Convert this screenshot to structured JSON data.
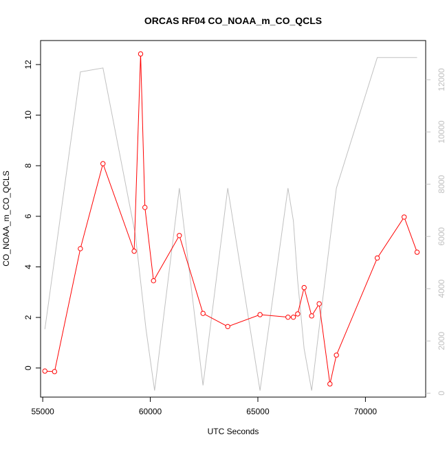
{
  "chart_data": {
    "type": "line",
    "title": "ORCAS RF04 CO_NOAA_m_CO_QCLS",
    "xlabel": "UTC Seconds",
    "ylabel": "CO_NOAA_m_CO_QCLS",
    "xlim": [
      54900,
      72800
    ],
    "ylim": [
      -1.15,
      12.95
    ],
    "y2lim": [
      -150,
      13500
    ],
    "x_ticks": [
      {
        "value": 55000,
        "label": "55000"
      },
      {
        "value": 60000,
        "label": "60000"
      },
      {
        "value": 65000,
        "label": "65000"
      },
      {
        "value": 70000,
        "label": "70000"
      }
    ],
    "y_ticks": [
      {
        "value": 0,
        "label": "0"
      },
      {
        "value": 2,
        "label": "2"
      },
      {
        "value": 4,
        "label": "4"
      },
      {
        "value": 6,
        "label": "6"
      },
      {
        "value": 8,
        "label": "8"
      },
      {
        "value": 10,
        "label": "10"
      },
      {
        "value": 12,
        "label": "12"
      }
    ],
    "y2_ticks": [
      {
        "value": 0,
        "label": "0"
      },
      {
        "value": 2000,
        "label": "2000"
      },
      {
        "value": 4000,
        "label": "4000"
      },
      {
        "value": 6000,
        "label": "6000"
      },
      {
        "value": 8000,
        "label": "8000"
      },
      {
        "value": 10000,
        "label": "10000"
      },
      {
        "value": 12000,
        "label": "12000"
      }
    ],
    "series": [
      {
        "axis": "left",
        "color": "#ff0000",
        "marker": "open-circle",
        "x": [
          55100,
          55550,
          56750,
          57800,
          59250,
          59550,
          59750,
          60150,
          61350,
          62450,
          63600,
          65100,
          66400,
          66650,
          66850,
          67150,
          67500,
          67850,
          68350,
          68650,
          70550,
          71800,
          72400
        ],
        "y": [
          -0.12,
          -0.14,
          4.72,
          8.08,
          4.62,
          12.42,
          6.35,
          3.45,
          5.24,
          2.16,
          1.64,
          2.11,
          2.01,
          2.01,
          2.14,
          3.18,
          2.06,
          2.54,
          -0.63,
          0.51,
          4.35,
          5.97,
          4.58
        ]
      },
      {
        "axis": "right",
        "color": "#c0c0c0",
        "marker": "none",
        "x": [
          55100,
          56750,
          57800,
          59300,
          59800,
          60200,
          61350,
          62450,
          63600,
          65100,
          66400,
          66650,
          66850,
          67150,
          67500,
          67850,
          68650,
          70550,
          72400
        ],
        "y": [
          2450,
          12300,
          12450,
          6100,
          2450,
          100,
          7850,
          300,
          7850,
          100,
          7850,
          6600,
          4300,
          1700,
          100,
          2500,
          7850,
          12850,
          12850
        ]
      }
    ]
  }
}
